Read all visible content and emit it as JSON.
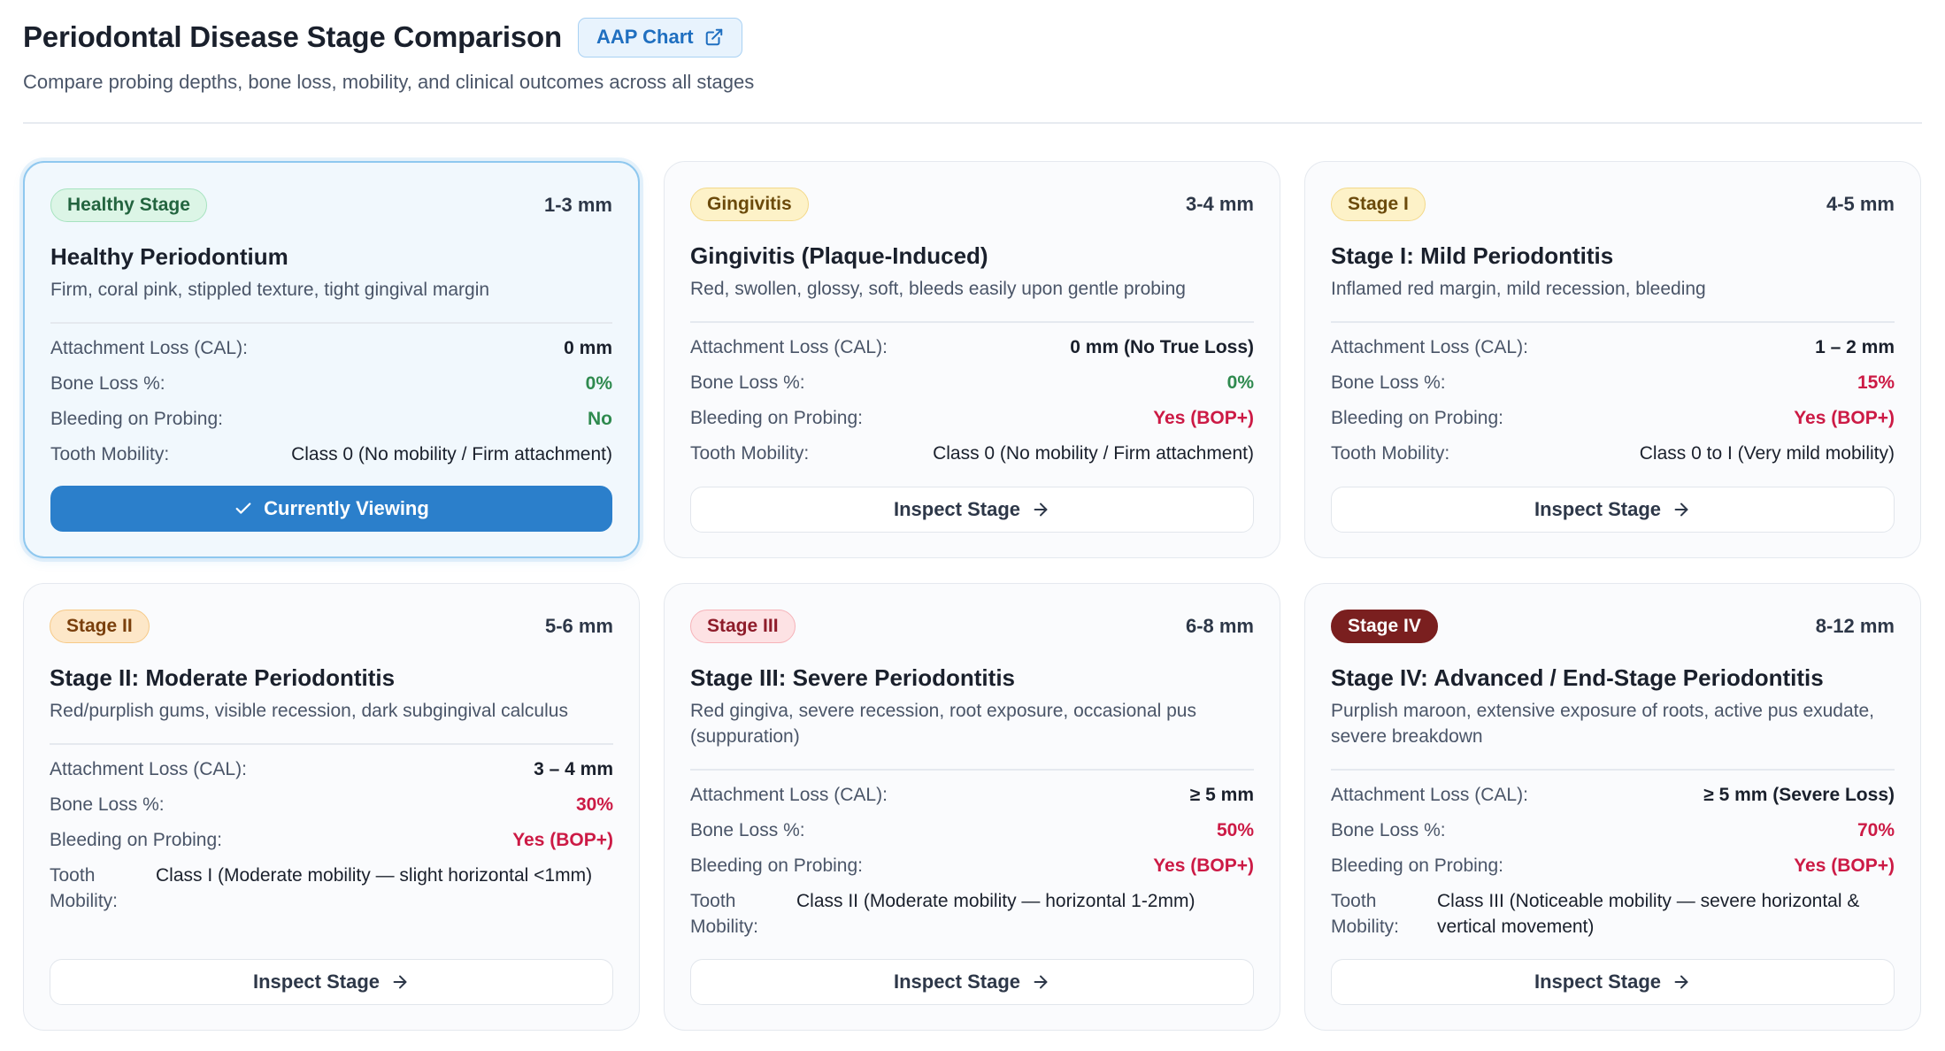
{
  "header": {
    "title": "Periodontal Disease Stage Comparison",
    "aap_button_label": "AAP Chart",
    "subtitle": "Compare probing depths, bone loss, mobility, and clinical outcomes across all stages"
  },
  "labels": {
    "cal": "Attachment Loss (CAL):",
    "bone": "Bone Loss %:",
    "bop": "Bleeding on Probing:",
    "mobility": "Tooth Mobility:",
    "inspect": "Inspect Stage",
    "current": "Currently Viewing"
  },
  "colors": {
    "accent": "#2b7fcb",
    "good": "#2f8a4f",
    "bad": "#cc1a45",
    "maroon": "#7a1f1f"
  },
  "stages": [
    {
      "badge": "Healthy Stage",
      "depth": "1-3 mm",
      "title": "Healthy Periodontium",
      "description": "Firm, coral pink, stippled texture, tight gingival margin",
      "cal": "0 mm",
      "bone_loss": "0%",
      "bleeding": "No",
      "mobility": "Class 0 (No mobility / Firm attachment)",
      "state": "current"
    },
    {
      "badge": "Gingivitis",
      "depth": "3-4 mm",
      "title": "Gingivitis (Plaque-Induced)",
      "description": "Red, swollen, glossy, soft, bleeds easily upon gentle probing",
      "cal": "0 mm (No True Loss)",
      "bone_loss": "0%",
      "bleeding": "Yes (BOP+)",
      "mobility": "Class 0 (No mobility / Firm attachment)",
      "state": "inspect"
    },
    {
      "badge": "Stage I",
      "depth": "4-5 mm",
      "title": "Stage I: Mild Periodontitis",
      "description": "Inflamed red margin, mild recession, bleeding",
      "cal": "1 – 2 mm",
      "bone_loss": "15%",
      "bleeding": "Yes (BOP+)",
      "mobility": "Class 0 to I (Very mild mobility)",
      "state": "inspect"
    },
    {
      "badge": "Stage II",
      "depth": "5-6 mm",
      "title": "Stage II: Moderate Periodontitis",
      "description": "Red/purplish gums, visible recession, dark subgingival calculus",
      "cal": "3 – 4 mm",
      "bone_loss": "30%",
      "bleeding": "Yes (BOP+)",
      "mobility": "Class I (Moderate mobility — slight horizontal <1mm)",
      "state": "inspect"
    },
    {
      "badge": "Stage III",
      "depth": "6-8 mm",
      "title": "Stage III: Severe Periodontitis",
      "description": "Red gingiva, severe recession, root exposure, occasional pus (suppuration)",
      "cal": "≥ 5 mm",
      "bone_loss": "50%",
      "bleeding": "Yes (BOP+)",
      "mobility": "Class II (Moderate mobility — horizontal 1-2mm)",
      "state": "inspect"
    },
    {
      "badge": "Stage IV",
      "depth": "8-12 mm",
      "title": "Stage IV: Advanced / End-Stage Periodontitis",
      "description": "Purplish maroon, extensive exposure of roots, active pus exudate, severe breakdown",
      "cal": "≥ 5 mm (Severe Loss)",
      "bone_loss": "70%",
      "bleeding": "Yes (BOP+)",
      "mobility": "Class III (Noticeable mobility — severe horizontal & vertical movement)",
      "state": "inspect"
    }
  ]
}
